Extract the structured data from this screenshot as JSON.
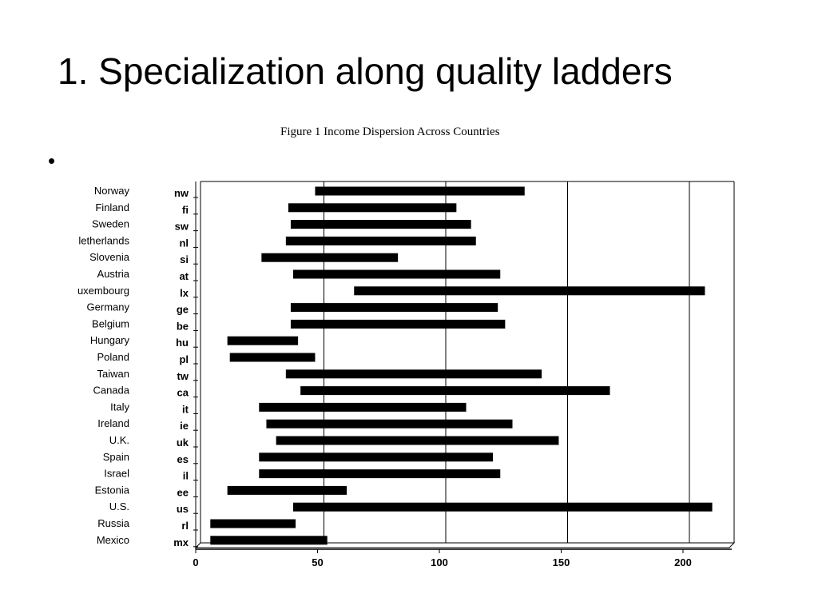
{
  "slide": {
    "title": "1. Specialization along quality ladders",
    "bullet": "•",
    "figure_caption": "Figure 1 Income Dispersion Across Countries"
  },
  "chart_data": {
    "type": "bar",
    "subtype": "floating-range-horizontal",
    "title": "Figure 1 Income Dispersion Across Countries",
    "xlabel": "",
    "ylabel": "",
    "xlim": [
      0,
      221
    ],
    "xticks": [
      0,
      50,
      100,
      150,
      200
    ],
    "grid": "vertical at x ticks",
    "categories": [
      "Norway",
      "Finland",
      "Sweden",
      "letherlands",
      "Slovenia",
      "Austria",
      "uxembourg",
      "Germany",
      "Belgium",
      "Hungary",
      "Poland",
      "Taiwan",
      "Canada",
      "Italy",
      "Ireland",
      "U.K.",
      "Spain",
      "Israel",
      "Estonia",
      "U.S.",
      "Russia",
      "Mexico"
    ],
    "codes": [
      "nw",
      "fi",
      "sw",
      "nl",
      "si",
      "at",
      "lx",
      "ge",
      "be",
      "hu",
      "pl",
      "tw",
      "ca",
      "it",
      "ie",
      "uk",
      "es",
      "il",
      "ee",
      "us",
      "rl",
      "mx"
    ],
    "series": [
      {
        "ranges": [
          [
            49,
            135
          ],
          [
            38,
            107
          ],
          [
            39,
            113
          ],
          [
            37,
            115
          ],
          [
            27,
            83
          ],
          [
            40,
            125
          ],
          [
            65,
            209
          ],
          [
            39,
            124
          ],
          [
            39,
            127
          ],
          [
            13,
            42
          ],
          [
            14,
            49
          ],
          [
            37,
            142
          ],
          [
            43,
            170
          ],
          [
            26,
            111
          ],
          [
            29,
            130
          ],
          [
            33,
            149
          ],
          [
            26,
            122
          ],
          [
            26,
            125
          ],
          [
            13,
            62
          ],
          [
            40,
            212
          ],
          [
            6,
            41
          ],
          [
            6,
            54
          ]
        ]
      }
    ]
  }
}
